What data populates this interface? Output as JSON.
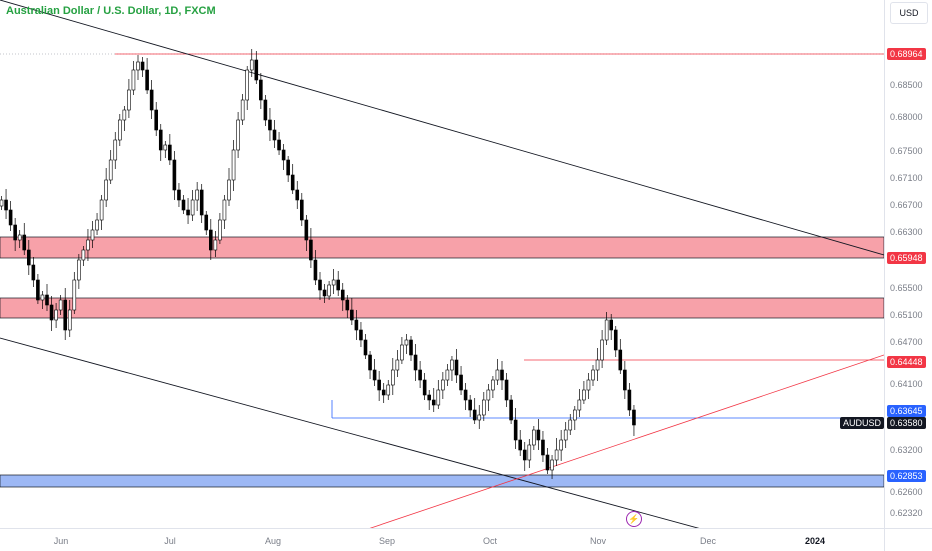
{
  "header": {
    "title": "Australian Dollar / U.S. Dollar, 1D, FXCM",
    "currency_button": "USD"
  },
  "price_axis": {
    "ticks": [
      "0.68500",
      "0.68000",
      "0.67500",
      "0.67100",
      "0.66700",
      "0.66300",
      "0.65500",
      "0.65100",
      "0.64700",
      "0.64100",
      "0.63200",
      "0.62600",
      "0.62320"
    ]
  },
  "time_axis": {
    "ticks": [
      {
        "label": "Jun",
        "bold": false
      },
      {
        "label": "Jul",
        "bold": false
      },
      {
        "label": "Aug",
        "bold": false
      },
      {
        "label": "Sep",
        "bold": false
      },
      {
        "label": "Oct",
        "bold": false
      },
      {
        "label": "Nov",
        "bold": false
      },
      {
        "label": "Dec",
        "bold": false
      },
      {
        "label": "2024",
        "bold": true
      }
    ]
  },
  "price_tags": [
    {
      "label": "0.68964",
      "color": "#f23645"
    },
    {
      "label": "0.65948",
      "color": "#f23645"
    },
    {
      "label": "0.64448",
      "color": "#f23645"
    },
    {
      "label": "0.63645",
      "color": "#2962ff"
    },
    {
      "label": "0.63580",
      "color": "#131722"
    },
    {
      "label": "0.62853",
      "color": "#2962ff"
    }
  ],
  "symbol_tag": "AUDUSD",
  "colors": {
    "title": "#26a142",
    "resistance_zone": "#f7a1a9",
    "support_zone": "#9db8f5",
    "red_line": "#f23645",
    "blue_line": "#2962ff",
    "trend_line": "#131722",
    "bull_candle": "#ffffff",
    "bear_candle": "#000000"
  },
  "icons": {
    "flash": "lightning-icon"
  }
}
